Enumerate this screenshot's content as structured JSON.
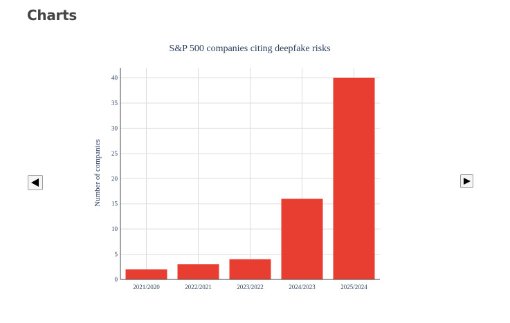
{
  "page": {
    "heading": "Charts"
  },
  "navigation": {
    "prev_icon": "triangle-left-icon",
    "next_icon": "triangle-right-icon"
  },
  "chart_data": {
    "type": "bar",
    "title": "S&P 500 companies citing deepfake risks",
    "xlabel": "",
    "ylabel": "Number of companies",
    "categories": [
      "2021/2020",
      "2022/2021",
      "2023/2022",
      "2024/2023",
      "2025/2024"
    ],
    "values": [
      2,
      3,
      4,
      16,
      40
    ],
    "ylim": [
      0,
      42
    ],
    "yticks": [
      0,
      5,
      10,
      15,
      20,
      25,
      30,
      35,
      40
    ],
    "grid": true,
    "colors": {
      "bar": "#e83e32",
      "grid": "#dddddd",
      "axis": "#444444",
      "text": "#2a3f5f"
    }
  }
}
